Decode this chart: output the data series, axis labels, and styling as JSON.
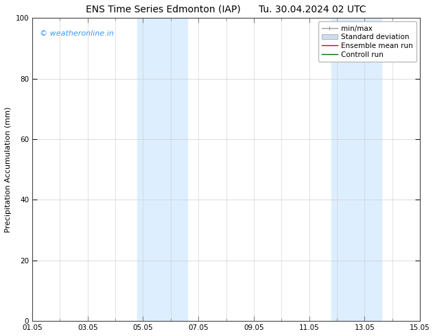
{
  "title": "ENS Time Series Edmonton (IAP)      Tu. 30.04.2024 02 UTC",
  "ylabel": "Precipitation Accumulation (mm)",
  "ylim": [
    0,
    100
  ],
  "yticks": [
    0,
    20,
    40,
    60,
    80,
    100
  ],
  "xtick_labels": [
    "01.05",
    "03.05",
    "05.05",
    "07.05",
    "09.05",
    "11.05",
    "13.05",
    "15.05"
  ],
  "xtick_major_positions": [
    0,
    2,
    4,
    6,
    8,
    10,
    12,
    14
  ],
  "xtick_minor_positions": [
    0,
    1,
    2,
    3,
    4,
    5,
    6,
    7,
    8,
    9,
    10,
    11,
    12,
    13,
    14
  ],
  "shaded_bands": [
    {
      "x_start": 3.8,
      "x_end": 5.6
    },
    {
      "x_start": 10.8,
      "x_end": 12.6
    }
  ],
  "shaded_color": "#ddeeff",
  "background_color": "#ffffff",
  "watermark_text": "© weatheronline.in",
  "watermark_color": "#3399ff",
  "watermark_fontsize": 8,
  "title_fontsize": 10,
  "ylabel_fontsize": 8,
  "tick_fontsize": 7.5,
  "legend_fontsize": 7.5,
  "legend_items": [
    {
      "label": "min/max",
      "color": "#999999",
      "lw": 1.0
    },
    {
      "label": "Standard deviation",
      "color": "#ccddef",
      "lw": 6
    },
    {
      "label": "Ensemble mean run",
      "color": "#cc0000",
      "lw": 1.0
    },
    {
      "label": "Controll run",
      "color": "#006600",
      "lw": 1.0
    }
  ],
  "grid_color": "#cccccc",
  "grid_alpha": 0.8,
  "spine_color": "#444444",
  "figsize": [
    6.34,
    4.9
  ],
  "dpi": 100
}
